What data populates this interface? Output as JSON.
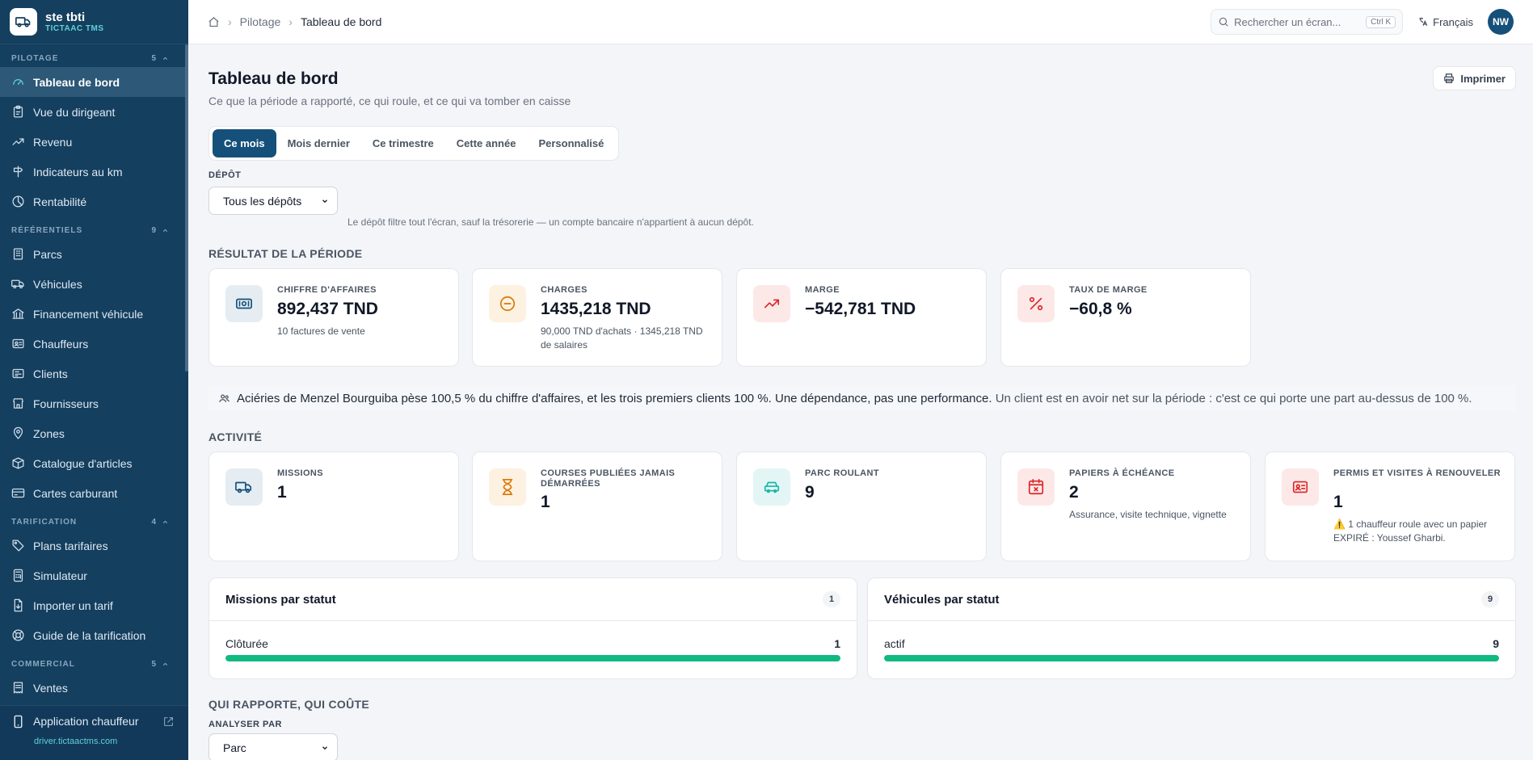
{
  "brand": {
    "name": "ste tbti",
    "subtitle": "TICTAAC TMS"
  },
  "sidebar": {
    "sections": [
      {
        "label": "PILOTAGE",
        "count": "5",
        "items": [
          {
            "label": "Tableau de bord",
            "icon": "gauge-icon",
            "active": true
          },
          {
            "label": "Vue du dirigeant",
            "icon": "clipboard-icon"
          },
          {
            "label": "Revenu",
            "icon": "trending-up-icon"
          },
          {
            "label": "Indicateurs au km",
            "icon": "signpost-icon"
          },
          {
            "label": "Rentabilité",
            "icon": "pie-chart-icon"
          }
        ]
      },
      {
        "label": "RÉFÉRENTIELS",
        "count": "9",
        "items": [
          {
            "label": "Parcs",
            "icon": "building-icon"
          },
          {
            "label": "Véhicules",
            "icon": "truck-icon"
          },
          {
            "label": "Financement véhicule",
            "icon": "bank-icon"
          },
          {
            "label": "Chauffeurs",
            "icon": "id-card-icon"
          },
          {
            "label": "Clients",
            "icon": "contact-card-icon"
          },
          {
            "label": "Fournisseurs",
            "icon": "store-icon"
          },
          {
            "label": "Zones",
            "icon": "map-pin-icon"
          },
          {
            "label": "Catalogue d'articles",
            "icon": "package-icon"
          },
          {
            "label": "Cartes carburant",
            "icon": "credit-card-icon"
          }
        ]
      },
      {
        "label": "TARIFICATION",
        "count": "4",
        "items": [
          {
            "label": "Plans tarifaires",
            "icon": "tag-icon"
          },
          {
            "label": "Simulateur",
            "icon": "calculator-icon"
          },
          {
            "label": "Importer un tarif",
            "icon": "file-import-icon"
          },
          {
            "label": "Guide de la tarification",
            "icon": "lifebuoy-icon"
          }
        ]
      },
      {
        "label": "COMMERCIAL",
        "count": "5",
        "items": [
          {
            "label": "Ventes",
            "icon": "receipt-icon"
          }
        ]
      }
    ],
    "footer": {
      "label": "Application chauffeur",
      "url": "driver.tictaactms.com"
    }
  },
  "topbar": {
    "breadcrumb": [
      "Pilotage",
      "Tableau de bord"
    ],
    "search_placeholder": "Rechercher un écran...",
    "search_shortcut": "Ctrl K",
    "language": "Français",
    "avatar_initials": "NW"
  },
  "page": {
    "title": "Tableau de bord",
    "subtitle": "Ce que la période a rapporté, ce qui roule, et ce qui va tomber en caisse",
    "print_label": "Imprimer",
    "periods": [
      "Ce mois",
      "Mois dernier",
      "Ce trimestre",
      "Cette année",
      "Personnalisé"
    ],
    "active_period": "Ce mois",
    "depot": {
      "label": "DÉPÔT",
      "value": "Tous les dépôts",
      "note": "Le dépôt filtre tout l'écran, sauf la trésorerie — un compte bancaire n'appartient à aucun dépôt."
    }
  },
  "result": {
    "title": "RÉSULTAT DE LA PÉRIODE",
    "cards": [
      {
        "title": "CHIFFRE D'AFFAIRES",
        "value": "892,437 TND",
        "sub": "10 factures de vente",
        "icon": "banknote-icon",
        "color": "#15507a",
        "bg": "#e5edf3"
      },
      {
        "title": "CHARGES",
        "value": "1435,218 TND",
        "sub": "90,000 TND d'achats · 1345,218 TND de salaires",
        "icon": "minus-circle-icon",
        "color": "#d97706",
        "bg": "#fdf1e2"
      },
      {
        "title": "MARGE",
        "value": "−542,781 TND",
        "sub": "",
        "icon": "trending-up-icon",
        "color": "#dc2626",
        "bg": "#fde8e8"
      },
      {
        "title": "TAUX DE MARGE",
        "value": "−60,8 %",
        "sub": "",
        "icon": "percent-icon",
        "color": "#dc2626",
        "bg": "#fde8e8"
      }
    ]
  },
  "banner": {
    "main": "Aciéries de Menzel Bourguiba pèse 100,5 % du chiffre d'affaires, et les trois premiers clients 100 %. Une dépendance, pas une performance.",
    "muted": "Un client est en avoir net sur la période : c'est ce qui porte une part au-dessus de 100 %."
  },
  "activity": {
    "title": "ACTIVITÉ",
    "cards": [
      {
        "title": "MISSIONS",
        "value": "1",
        "sub": "",
        "icon": "truck-icon",
        "color": "#15507a",
        "bg": "#e5edf3"
      },
      {
        "title": "COURSES PUBLIÉES JAMAIS DÉMARRÉES",
        "value": "1",
        "sub": "",
        "icon": "hourglass-icon",
        "color": "#d97706",
        "bg": "#fdf1e2"
      },
      {
        "title": "PARC ROULANT",
        "value": "9",
        "sub": "",
        "icon": "car-icon",
        "color": "#14b8a6",
        "bg": "#e3f6f5"
      },
      {
        "title": "PAPIERS À ÉCHÉANCE",
        "value": "2",
        "sub": "Assurance, visite technique, vignette",
        "icon": "calendar-x-icon",
        "color": "#dc2626",
        "bg": "#fde8e8"
      },
      {
        "title": "PERMIS ET VISITES À RENOUVELER",
        "value": "1",
        "sub": "⚠️ 1 chauffeur roule avec un papier EXPIRÉ : Youssef Gharbi.",
        "icon": "id-card-icon",
        "color": "#dc2626",
        "bg": "#fde8e8"
      }
    ]
  },
  "panels": [
    {
      "title": "Missions par statut",
      "badge": "1",
      "rows": [
        {
          "label": "Clôturée",
          "value": "1",
          "fraction": 1.0
        }
      ]
    },
    {
      "title": "Véhicules par statut",
      "badge": "9",
      "rows": [
        {
          "label": "actif",
          "value": "9",
          "fraction": 1.0
        }
      ]
    }
  ],
  "analysis": {
    "title": "QUI RAPPORTE, QUI COÛTE",
    "label": "ANALYSER PAR",
    "value": "Parc"
  }
}
